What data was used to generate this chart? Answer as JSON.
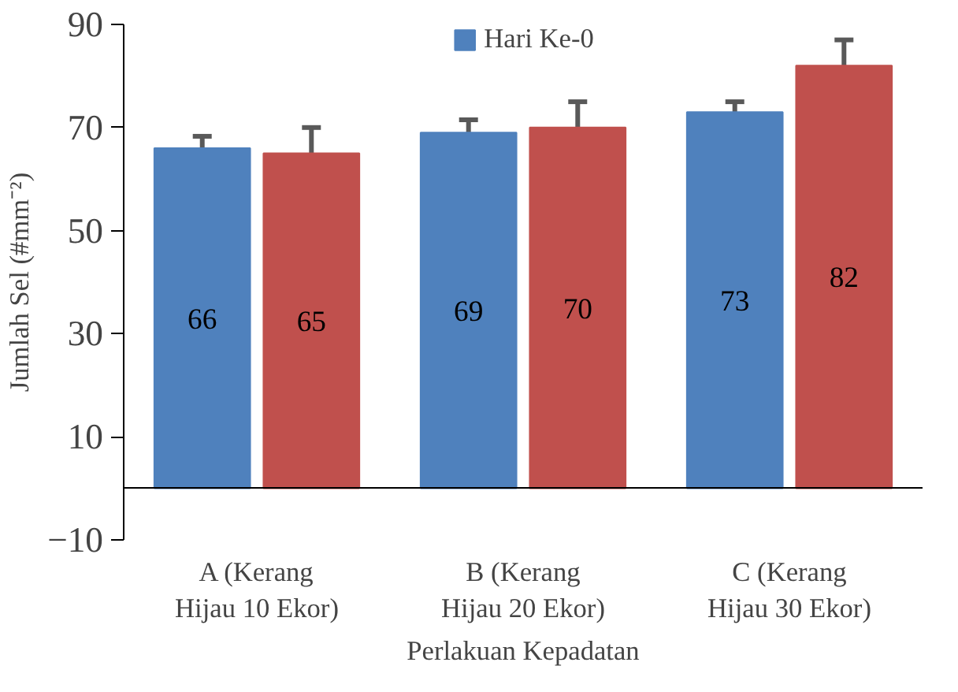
{
  "chart_data": {
    "type": "bar",
    "xlabel": "Perlakuan Kepadatan",
    "ylabel": "Jumlah Sel (#mm⁻²)",
    "categories": [
      "A (Kerang\nHijau 10 Ekor)",
      "B (Kerang\nHijau 20 Ekor)",
      "C (Kerang\nHijau 30 Ekor)"
    ],
    "series": [
      {
        "name": "Hari Ke-0",
        "color": "#4f81bd",
        "values": [
          66,
          69,
          73
        ],
        "errors": [
          2.3,
          2.5,
          2
        ]
      },
      {
        "color": "#c0504d",
        "values": [
          65,
          70,
          82
        ],
        "errors": [
          5,
          5,
          5
        ]
      }
    ],
    "ylim": [
      -10,
      90
    ],
    "yticks": [
      -10,
      10,
      30,
      50,
      70,
      90
    ],
    "grid": false,
    "legend": "top",
    "data_labels": true
  }
}
